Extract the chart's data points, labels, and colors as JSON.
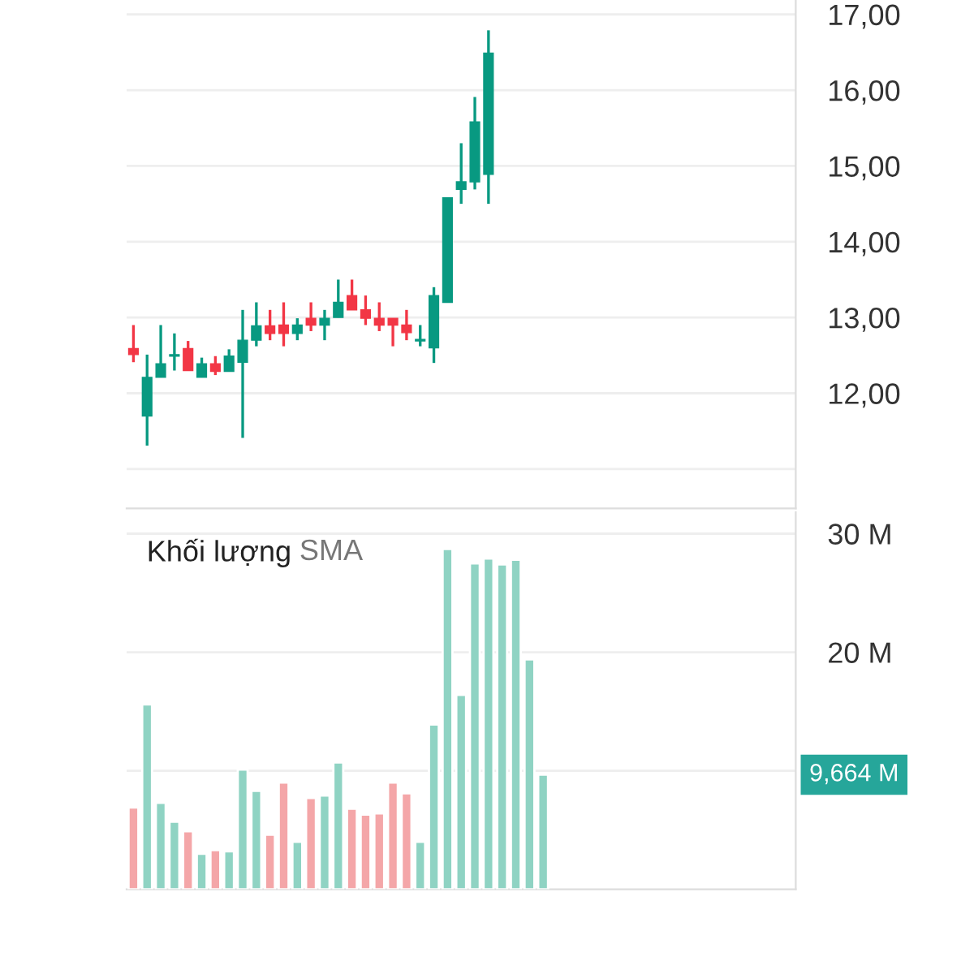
{
  "chart_data": [
    {
      "type": "candlestick",
      "categories": [
        null,
        null,
        null,
        null,
        null,
        null,
        null,
        null,
        null,
        null,
        null,
        null,
        null,
        null,
        null,
        null,
        null,
        null,
        null,
        null,
        null,
        null,
        null,
        null,
        null,
        null,
        null,
        null,
        null,
        null,
        null,
        null,
        null,
        null,
        null,
        null,
        null,
        null,
        null,
        null,
        null,
        null,
        null,
        null,
        null,
        null,
        null,
        null,
        null
      ],
      "ohlc": [
        [
          12.59,
          12.9,
          12.41,
          12.51
        ],
        [
          11.7,
          12.51,
          11.31,
          12.21
        ],
        [
          12.21,
          12.9,
          12.21,
          12.39
        ],
        [
          12.49,
          12.79,
          12.3,
          12.51
        ],
        [
          12.59,
          12.69,
          12.3,
          12.3
        ],
        [
          12.21,
          12.47,
          12.21,
          12.39
        ],
        [
          12.39,
          12.49,
          12.24,
          12.29
        ],
        [
          12.29,
          12.58,
          12.29,
          12.49
        ],
        [
          12.41,
          13.1,
          11.41,
          12.7
        ],
        [
          12.7,
          13.2,
          12.62,
          12.89
        ],
        [
          12.89,
          13.1,
          12.7,
          12.79
        ],
        [
          12.9,
          13.2,
          12.62,
          12.79
        ],
        [
          12.79,
          12.99,
          12.7,
          12.9
        ],
        [
          12.99,
          13.2,
          12.82,
          12.9
        ],
        [
          12.9,
          13.1,
          12.7,
          12.99
        ],
        [
          13.0,
          13.5,
          13.0,
          13.2
        ],
        [
          13.29,
          13.5,
          13.1,
          13.1
        ],
        [
          13.1,
          13.29,
          12.9,
          12.99
        ],
        [
          12.99,
          13.2,
          12.82,
          12.9
        ],
        [
          12.99,
          12.99,
          12.62,
          12.9
        ],
        [
          12.9,
          13.1,
          12.7,
          12.8
        ],
        [
          12.69,
          12.9,
          12.62,
          12.71
        ],
        [
          12.6,
          13.4,
          12.4,
          13.29
        ],
        [
          13.2,
          14.58,
          13.2,
          14.58
        ],
        [
          14.69,
          15.3,
          14.5,
          14.79
        ],
        [
          14.79,
          15.91,
          14.69,
          15.58
        ],
        [
          14.89,
          16.79,
          14.5,
          16.49
        ],
        null,
        null,
        null,
        null,
        null,
        null,
        null,
        null,
        null,
        null,
        null,
        null,
        null,
        null,
        null,
        null,
        null,
        null,
        null,
        null,
        null,
        null
      ],
      "colors": [
        "#f23645",
        "#089981",
        "#089981",
        "#089981",
        "#f23645",
        "#089981",
        "#f23645",
        "#089981",
        "#089981",
        "#089981",
        "#f23645",
        "#f23645",
        "#089981",
        "#f23645",
        "#089981",
        "#089981",
        "#f23645",
        "#f23645",
        "#f23645",
        "#f23645",
        "#f23645",
        "#089981",
        "#089981",
        "#089981",
        "#089981",
        "#089981",
        "#089981",
        "#089981",
        null,
        null,
        null,
        null,
        null,
        null,
        null,
        null,
        null,
        null,
        null,
        null,
        null,
        null,
        null,
        null,
        null,
        null,
        null,
        null,
        null
      ],
      "ylim": [
        10.48,
        17.19
      ],
      "yticks": [
        {
          "value": 11,
          "label": null
        },
        {
          "value": 12,
          "label": "12,00"
        },
        {
          "value": 13,
          "label": "13,00"
        },
        {
          "value": 14,
          "label": "14,00"
        },
        {
          "value": 15,
          "label": "15,00"
        },
        {
          "value": 16,
          "label": "16,00"
        },
        {
          "value": 17,
          "label": "17,00"
        }
      ],
      "grid": "y",
      "tick_labels": "y"
    },
    {
      "type": "bar",
      "title": "Khối lượng",
      "subtitle": "SMA",
      "categories": [
        null,
        null,
        null,
        null,
        null,
        null,
        null,
        null,
        null,
        null,
        null,
        null,
        null,
        null,
        null,
        null,
        null,
        null,
        null,
        null,
        null,
        null,
        null,
        null,
        null,
        null,
        null,
        null,
        null,
        null,
        null,
        null,
        null,
        null,
        null,
        null,
        null,
        null,
        null,
        null,
        null,
        null,
        null,
        null,
        null,
        null,
        null,
        null,
        null
      ],
      "values": [
        6.9,
        15.6,
        7.3,
        5.7,
        4.9,
        3.0,
        3.3,
        3.2,
        10.1,
        8.3,
        4.6,
        9.0,
        4.0,
        7.7,
        7.9,
        10.7,
        6.8,
        6.3,
        6.4,
        9.0,
        8.1,
        4.0,
        13.9,
        28.7,
        16.4,
        27.5,
        27.9,
        27.4,
        27.8,
        19.4,
        9.664,
        null,
        null,
        null,
        null,
        null,
        null,
        null,
        null,
        null,
        null,
        null,
        null,
        null,
        null,
        null,
        null,
        null,
        null
      ],
      "colors": [
        "#f4a6a8",
        "#8fd3c3",
        "#8fd3c3",
        "#8fd3c3",
        "#f4a6a8",
        "#8fd3c3",
        "#f4a6a8",
        "#8fd3c3",
        "#8fd3c3",
        "#8fd3c3",
        "#f4a6a8",
        "#f4a6a8",
        "#8fd3c3",
        "#f4a6a8",
        "#8fd3c3",
        "#8fd3c3",
        "#f4a6a8",
        "#f4a6a8",
        "#f4a6a8",
        "#f4a6a8",
        "#f4a6a8",
        "#8fd3c3",
        "#8fd3c3",
        "#8fd3c3",
        "#8fd3c3",
        "#8fd3c3",
        "#8fd3c3",
        "#8fd3c3",
        "#8fd3c3",
        "#8fd3c3",
        "#8fd3c3",
        "#8fd3c3",
        "#8fd3c3",
        "#8fd3c3",
        "#8fd3c3",
        "#8fd3c3",
        "#8fd3c3",
        "#8fd3c3",
        "#8fd3c3",
        "#8fd3c3",
        "#8fd3c3",
        "#8fd3c3",
        "#8fd3c3",
        "#8fd3c3",
        "#8fd3c3",
        "#8fd3c3",
        "#8fd3c3",
        "#8fd3c3",
        "#8fd3c3"
      ],
      "ylim": [
        0,
        31.8
      ],
      "yticks": [
        {
          "value": 10,
          "label": null
        },
        {
          "value": 20,
          "label": "20 M"
        },
        {
          "value": 30,
          "label": "30 M"
        }
      ],
      "annotations": [
        "9,664 M"
      ],
      "grid": "y",
      "tick_labels": "y"
    }
  ]
}
